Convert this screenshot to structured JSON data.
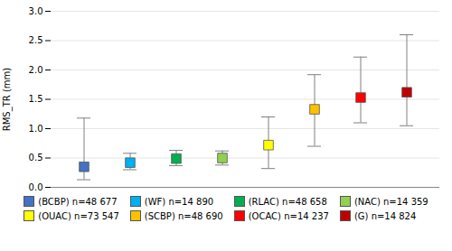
{
  "chart_data": {
    "type": "box",
    "ylabel": "RMS_TR (mm)",
    "series": [
      {
        "name": "(BCBP) n=48 677",
        "color": "#4472C4",
        "mean": 0.35,
        "low": 0.13,
        "high": 1.18
      },
      {
        "name": "(WF) n=14 890",
        "color": "#00B0F0",
        "mean": 0.42,
        "low": 0.3,
        "high": 0.58
      },
      {
        "name": "(RLAC) n=48 658",
        "color": "#00B050",
        "mean": 0.49,
        "low": 0.37,
        "high": 0.63
      },
      {
        "name": "(NAC) n=14 359",
        "color": "#92D050",
        "mean": 0.5,
        "low": 0.38,
        "high": 0.62
      },
      {
        "name": "(OUAC) n=73 547",
        "color": "#FFFF00",
        "mean": 0.72,
        "low": 0.32,
        "high": 1.2
      },
      {
        "name": "(SCBP) n=48 690",
        "color": "#FFC000",
        "mean": 1.33,
        "low": 0.7,
        "high": 1.92
      },
      {
        "name": "(OCAC) n=14 237",
        "color": "#FF0000",
        "mean": 1.53,
        "low": 1.1,
        "high": 2.22
      },
      {
        "name": "(G) n=14 824",
        "color": "#C00000",
        "mean": 1.62,
        "low": 1.05,
        "high": 2.6
      }
    ],
    "ylim": [
      0.0,
      3.0
    ],
    "yticks": [
      {
        "value": 0,
        "label": "0.0"
      },
      0.5,
      {
        "value": 1,
        "label": "1.0"
      },
      1.5,
      {
        "value": 2,
        "label": "2.0"
      },
      2.5,
      {
        "value": 3,
        "label": "3.0"
      }
    ],
    "grid": true,
    "legend": "bottom",
    "tick_labels": "y"
  }
}
